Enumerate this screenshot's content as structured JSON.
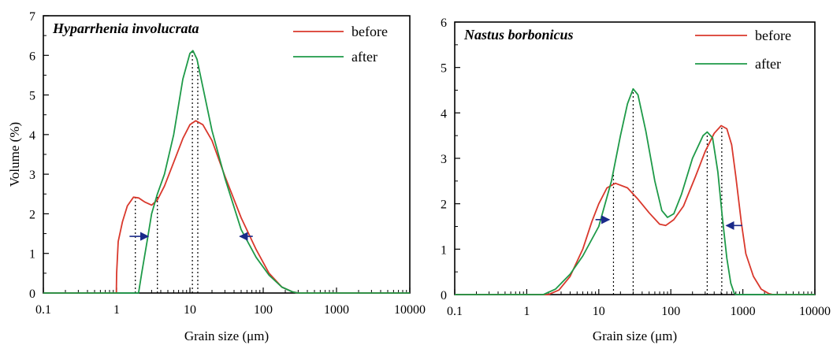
{
  "chart_data": [
    {
      "type": "line",
      "title": "Hyparrhenia involucrata",
      "xlabel": "Grain size (μm)",
      "ylabel": "Volume (%)",
      "xscale": "log",
      "xlim": [
        0.1,
        10000
      ],
      "ylim": [
        0,
        7
      ],
      "xticks": [
        "0.1",
        "1",
        "10",
        "100",
        "1000",
        "10000"
      ],
      "yticks": [
        "0",
        "1",
        "2",
        "3",
        "4",
        "5",
        "6",
        "7"
      ],
      "grid": false,
      "legend_position": "top-right",
      "series": [
        {
          "name": "before",
          "color": "#d9382c",
          "points": [
            [
              0.1,
              0
            ],
            [
              0.99,
              0
            ],
            [
              1.0,
              0.5
            ],
            [
              1.05,
              1.3
            ],
            [
              1.2,
              1.8
            ],
            [
              1.4,
              2.2
            ],
            [
              1.7,
              2.42
            ],
            [
              2.0,
              2.4
            ],
            [
              2.4,
              2.3
            ],
            [
              3.0,
              2.22
            ],
            [
              3.6,
              2.35
            ],
            [
              4.5,
              2.7
            ],
            [
              6,
              3.3
            ],
            [
              8,
              3.9
            ],
            [
              10,
              4.25
            ],
            [
              12,
              4.35
            ],
            [
              15,
              4.25
            ],
            [
              20,
              3.85
            ],
            [
              30,
              2.95
            ],
            [
              50,
              1.9
            ],
            [
              80,
              1.1
            ],
            [
              120,
              0.5
            ],
            [
              180,
              0.15
            ],
            [
              250,
              0.03
            ],
            [
              300,
              0
            ],
            [
              10000,
              0
            ]
          ]
        },
        {
          "name": "after",
          "color": "#1e9a48",
          "points": [
            [
              0.1,
              0
            ],
            [
              1.99,
              0
            ],
            [
              2.2,
              0.5
            ],
            [
              2.6,
              1.3
            ],
            [
              3.0,
              2.0
            ],
            [
              3.6,
              2.5
            ],
            [
              4.5,
              3.0
            ],
            [
              6,
              4.0
            ],
            [
              8,
              5.4
            ],
            [
              10,
              6.05
            ],
            [
              11,
              6.12
            ],
            [
              12.5,
              5.9
            ],
            [
              15,
              5.2
            ],
            [
              20,
              4.1
            ],
            [
              30,
              2.9
            ],
            [
              50,
              1.6
            ],
            [
              80,
              0.9
            ],
            [
              120,
              0.45
            ],
            [
              180,
              0.15
            ],
            [
              250,
              0.03
            ],
            [
              300,
              0
            ],
            [
              10000,
              0
            ]
          ]
        }
      ],
      "markers": [
        1.8,
        3.6,
        10.8,
        12.8
      ],
      "arrows": [
        {
          "x_from": 1.5,
          "x_to": 2.7,
          "y": 1.43
        },
        {
          "x_from": 72,
          "x_to": 48,
          "y": 1.43
        }
      ]
    },
    {
      "type": "line",
      "title": "Nastus borbonicus",
      "xlabel": "Grain size (μm)",
      "ylabel": "",
      "xscale": "log",
      "xlim": [
        0.1,
        10000
      ],
      "ylim": [
        0,
        6
      ],
      "xticks": [
        "0.1",
        "1",
        "10",
        "100",
        "1000",
        "10000"
      ],
      "yticks": [
        "0",
        "1",
        "2",
        "3",
        "4",
        "5",
        "6"
      ],
      "grid": false,
      "legend_position": "top-right",
      "series": [
        {
          "name": "before",
          "color": "#d9382c",
          "points": [
            [
              0.1,
              0
            ],
            [
              2.0,
              0
            ],
            [
              2.8,
              0.1
            ],
            [
              4,
              0.4
            ],
            [
              6,
              1.0
            ],
            [
              8,
              1.6
            ],
            [
              10,
              2.0
            ],
            [
              13,
              2.35
            ],
            [
              17,
              2.45
            ],
            [
              25,
              2.35
            ],
            [
              35,
              2.1
            ],
            [
              50,
              1.8
            ],
            [
              70,
              1.55
            ],
            [
              85,
              1.52
            ],
            [
              110,
              1.65
            ],
            [
              150,
              1.95
            ],
            [
              220,
              2.6
            ],
            [
              300,
              3.15
            ],
            [
              400,
              3.55
            ],
            [
              500,
              3.72
            ],
            [
              600,
              3.65
            ],
            [
              700,
              3.3
            ],
            [
              800,
              2.6
            ],
            [
              950,
              1.6
            ],
            [
              1100,
              0.9
            ],
            [
              1400,
              0.4
            ],
            [
              1800,
              0.12
            ],
            [
              2300,
              0.02
            ],
            [
              2600,
              0
            ],
            [
              10000,
              0
            ]
          ]
        },
        {
          "name": "after",
          "color": "#1e9a48",
          "points": [
            [
              0.1,
              0
            ],
            [
              1.7,
              0
            ],
            [
              2.5,
              0.12
            ],
            [
              4,
              0.45
            ],
            [
              6,
              0.85
            ],
            [
              10,
              1.5
            ],
            [
              15,
              2.5
            ],
            [
              20,
              3.5
            ],
            [
              25,
              4.2
            ],
            [
              30,
              4.53
            ],
            [
              35,
              4.4
            ],
            [
              45,
              3.6
            ],
            [
              60,
              2.5
            ],
            [
              75,
              1.85
            ],
            [
              90,
              1.7
            ],
            [
              110,
              1.78
            ],
            [
              140,
              2.2
            ],
            [
              200,
              3.0
            ],
            [
              280,
              3.5
            ],
            [
              320,
              3.58
            ],
            [
              380,
              3.45
            ],
            [
              450,
              2.7
            ],
            [
              520,
              1.7
            ],
            [
              600,
              0.8
            ],
            [
              680,
              0.25
            ],
            [
              760,
              0.03
            ],
            [
              800,
              0
            ],
            [
              10000,
              0
            ]
          ]
        }
      ],
      "markers": [
        16,
        30,
        320,
        510
      ],
      "arrows": [
        {
          "x_from": 9,
          "x_to": 14,
          "y": 1.65
        },
        {
          "x_from": 980,
          "x_to": 590,
          "y": 1.52
        }
      ]
    }
  ]
}
